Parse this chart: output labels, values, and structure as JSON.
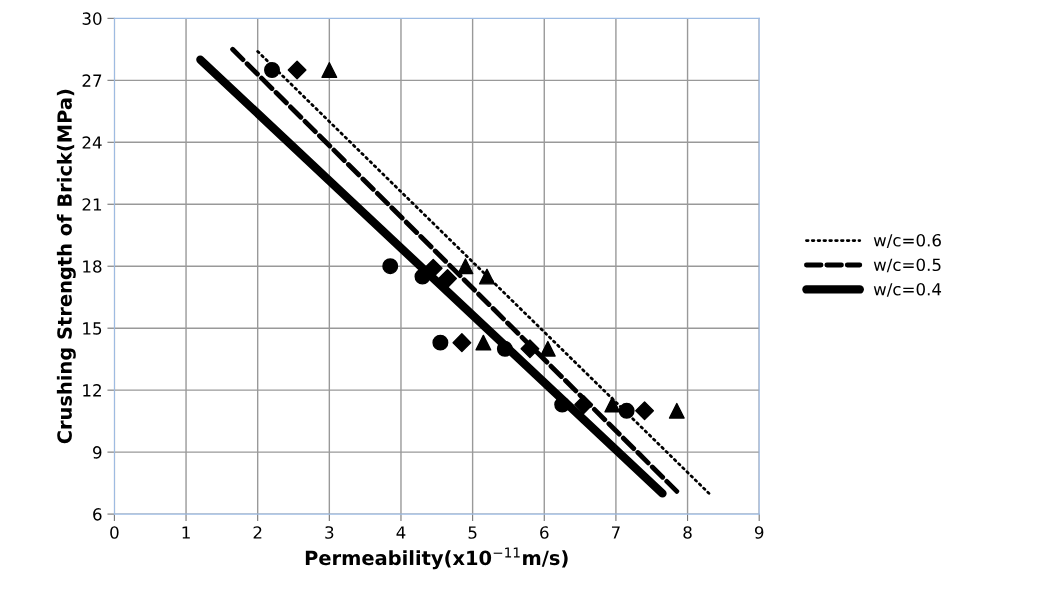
{
  "chart_data": {
    "type": "scatter",
    "xlabel": "Permeability(x10$^{−11}$m/s)",
    "ylabel": "Crushing Strength of Brick(MPa)",
    "xlim": [
      0,
      9
    ],
    "xticks": [
      0,
      1,
      2,
      3,
      4,
      5,
      6,
      7,
      8,
      9
    ],
    "ylim": [
      6,
      30
    ],
    "yticks": [
      6,
      9,
      12,
      15,
      18,
      21,
      24,
      27,
      30
    ],
    "grid": true,
    "legend": "right",
    "series": [
      {
        "marker": "circle",
        "color": "#000000",
        "x": [
          2.2,
          3.85,
          4.3,
          4.55,
          5.45,
          6.25,
          7.15
        ],
        "values": [
          27.5,
          18,
          17.5,
          14.3,
          14,
          11.3,
          11
        ]
      },
      {
        "marker": "diamond",
        "color": "#000000",
        "x": [
          2.55,
          4.45,
          4.65,
          4.85,
          5.8,
          6.55,
          7.4
        ],
        "values": [
          27.5,
          17.9,
          17.4,
          14.3,
          14,
          11.3,
          11
        ]
      },
      {
        "marker": "triangle",
        "color": "#000000",
        "x": [
          3,
          4.9,
          5.2,
          5.15,
          6.05,
          6.95,
          7.85
        ],
        "values": [
          27.5,
          18,
          17.5,
          14.3,
          14,
          11.3,
          11
        ]
      },
      {
        "type": "line",
        "name": "w/c=0.6",
        "line_style": "dotted",
        "color": "#000000",
        "x": [
          2,
          8.3
        ],
        "values": [
          28.4,
          7
        ]
      },
      {
        "type": "line",
        "name": "w/c=0.5",
        "line_style": "dashed",
        "color": "#000000",
        "x": [
          1.65,
          7.85
        ],
        "values": [
          28.5,
          7.1
        ]
      },
      {
        "type": "line",
        "name": "w/c=0.4",
        "line_style": "solid",
        "color": "#000000",
        "x": [
          1.2,
          7.65
        ],
        "values": [
          28,
          7
        ]
      }
    ]
  }
}
